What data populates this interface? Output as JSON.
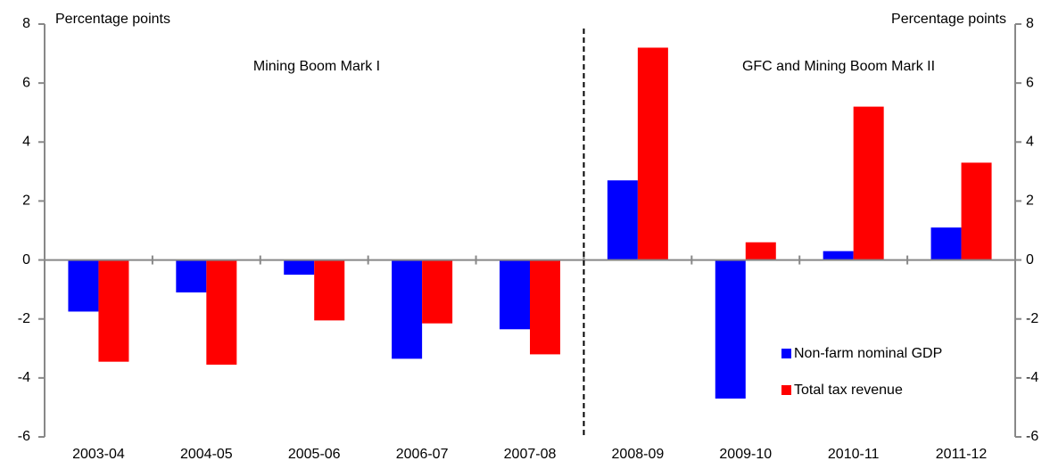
{
  "chart_data": {
    "type": "bar",
    "y_axis_label": "Percentage points",
    "y2_axis_label": "Percentage points",
    "annotations": [
      "Mining Boom Mark I",
      "GFC and Mining Boom Mark II"
    ],
    "categories": [
      "2003-04",
      "2004-05",
      "2005-06",
      "2006-07",
      "2007-08",
      "2008-09",
      "2009-10",
      "2010-11",
      "2011-12"
    ],
    "series": [
      {
        "name": "Non-farm nominal GDP",
        "color": "#0000ff",
        "values": [
          -1.75,
          -1.1,
          -0.5,
          -3.35,
          -2.35,
          2.7,
          -4.7,
          0.3,
          1.1
        ]
      },
      {
        "name": "Total tax revenue",
        "color": "#ff0000",
        "values": [
          -3.45,
          -3.55,
          -2.05,
          -2.15,
          -3.2,
          7.2,
          0.6,
          5.2,
          3.3
        ]
      }
    ],
    "ylim": [
      -6,
      8
    ],
    "yticks": [
      -6,
      -4,
      -2,
      0,
      2,
      4,
      6,
      8
    ],
    "y2lim": [
      -6,
      8
    ],
    "y2ticks": [
      -6,
      -4,
      -2,
      0,
      2,
      4,
      6,
      8
    ],
    "legend": "lower right",
    "grid": false
  }
}
